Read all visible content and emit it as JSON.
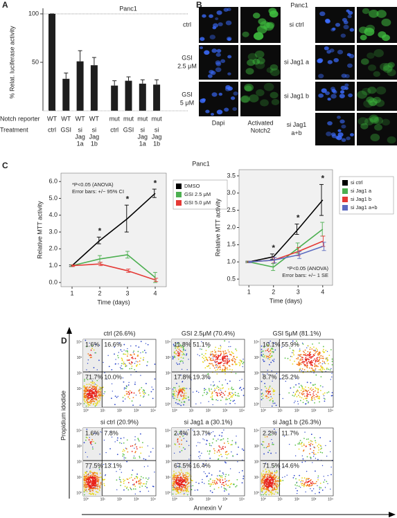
{
  "chart_data": [
    {
      "type": "bar",
      "panel_label": "A",
      "title": "Panc1",
      "ylabel": "% Relat. luciferase activity",
      "row_labels": [
        "Notch reporter",
        "Treatment"
      ],
      "reporter": [
        "WT",
        "WT",
        "WT",
        "WT",
        "mut",
        "mut",
        "mut",
        "mut"
      ],
      "categories": [
        [
          "ctrl"
        ],
        [
          "GSI"
        ],
        [
          "si",
          "Jag",
          "1a"
        ],
        [
          "si",
          "Jag",
          "1b"
        ],
        [
          "ctrl"
        ],
        [
          "GSI"
        ],
        [
          "si",
          "Jag",
          "1a"
        ],
        [
          "si",
          "Jag",
          "1b"
        ]
      ],
      "values": [
        100,
        33,
        51,
        47,
        26,
        31,
        28,
        27
      ],
      "errors": [
        0,
        6,
        11,
        8,
        5,
        4,
        4,
        5
      ],
      "color": "#1e1e1e",
      "ylim": [
        0,
        100
      ],
      "yticks": [
        50,
        100
      ]
    },
    {
      "type": "line",
      "panel_label": "C",
      "title": "Panc1",
      "xlabel": "Time (days)",
      "ylabel": "Relative MTT activity",
      "annotations": [
        "*P<0.05 (ANOVA)",
        "Error bars: +/− 95% CI"
      ],
      "significance": {
        "label": "*",
        "x": [
          2,
          3,
          4
        ]
      },
      "x": [
        1,
        2,
        3,
        4
      ],
      "xlim": [
        0.6,
        4.4
      ],
      "xticks": [
        1,
        2,
        3,
        4
      ],
      "ylim": [
        -0.25,
        6.5
      ],
      "yticks": [
        {
          "value": 0,
          "label": "0.0"
        },
        {
          "value": 1,
          "label": "1.0"
        },
        {
          "value": 2,
          "label": "2.0"
        },
        {
          "value": 3,
          "label": "3.0"
        },
        {
          "value": 4,
          "label": "4.0"
        },
        {
          "value": 5,
          "label": "5.0"
        },
        {
          "value": 6,
          "label": "6.0"
        }
      ],
      "legend": "outside-right",
      "series": [
        {
          "name": "DMSO",
          "color": "#000000",
          "values": [
            1,
            2.5,
            3.8,
            5.3
          ],
          "errors": [
            0.05,
            0.2,
            0.8,
            0.25
          ]
        },
        {
          "name": "GSI 2.5 μM",
          "color": "#4caf50",
          "values": [
            1,
            1.4,
            1.65,
            0.3
          ],
          "errors": [
            0.05,
            0.2,
            0.2,
            0.3
          ]
        },
        {
          "name": "GSI 5.0 μM",
          "color": "#e53935",
          "values": [
            1,
            1.1,
            0.7,
            0.15
          ],
          "errors": [
            0.05,
            0.1,
            0.1,
            0.1
          ]
        }
      ]
    },
    {
      "type": "line",
      "xlabel": "Time (days)",
      "ylabel": "Relative MTT activity",
      "annotations": [
        "*P<0.05 (ANOVA)",
        "Error bars: +/− 1 SE"
      ],
      "significance": {
        "label": "*",
        "x": [
          2,
          3,
          4
        ]
      },
      "x": [
        1,
        2,
        3,
        4
      ],
      "xlim": [
        0.6,
        4.4
      ],
      "xticks": [
        1,
        2,
        3,
        4
      ],
      "ylim": [
        0.32,
        3.68
      ],
      "yticks": [
        0.5,
        {
          "value": 1,
          "label": "1.0"
        },
        1.5,
        {
          "value": 2,
          "label": "2.0"
        },
        2.5,
        {
          "value": 3,
          "label": "3.0"
        },
        3.5
      ],
      "legend": "outside-right",
      "series": [
        {
          "name": "si ctrl",
          "color": "#000000",
          "values": [
            1,
            1.15,
            1.95,
            2.8
          ],
          "errors": [
            0.02,
            0.08,
            0.15,
            0.45
          ]
        },
        {
          "name": "si Jag1 a",
          "color": "#4caf50",
          "values": [
            1,
            0.85,
            1.4,
            1.95
          ],
          "errors": [
            0.02,
            0.1,
            0.15,
            0.2
          ]
        },
        {
          "name": "si Jag1 b",
          "color": "#e53935",
          "values": [
            1,
            1.05,
            1.3,
            1.6
          ],
          "errors": [
            0.02,
            0.08,
            0.12,
            0.15
          ]
        },
        {
          "name": "si Jag1 a+b",
          "color": "#5c6bc0",
          "values": [
            1,
            1.05,
            1.2,
            1.45
          ],
          "errors": [
            0.02,
            0.08,
            0.1,
            0.12
          ]
        }
      ]
    }
  ],
  "microscopy": {
    "label": "B",
    "title": "Panc1",
    "left_rows": [
      [
        "ctrl"
      ],
      [
        "GSI",
        "2.5 μM"
      ],
      [
        "GSI",
        "5 μM"
      ]
    ],
    "columns": [
      [
        "Dapi"
      ],
      [
        "Activated",
        "Notch2"
      ]
    ],
    "right_rows": [
      [
        "si ctrl"
      ],
      [
        "si Jag1 a"
      ],
      [
        "si Jag1 b"
      ],
      [
        "si Jag1",
        "a+b"
      ]
    ]
  },
  "flow": {
    "label": "D",
    "xlabel": "Annexin V",
    "ylabel": "Propidium idodide",
    "axis_ticks": [
      "10⁰",
      "10¹",
      "10²",
      "10³",
      "10⁴"
    ],
    "plots": [
      {
        "title": "ctrl (26.6%)",
        "quadrants": [
          "1.6%",
          "16.6%",
          "71.7%",
          "10.0%"
        ]
      },
      {
        "title": "GSI 2.5μM (70.4%)",
        "quadrants": [
          "11.8%",
          "51.1%",
          "17.8%",
          "19.3%"
        ]
      },
      {
        "title": "GSI 5μM (81.1%)",
        "quadrants": [
          "10.1%",
          "55.9%",
          "8.7%",
          "25.2%"
        ]
      },
      {
        "title": "si ctrl (20.9%)",
        "quadrants": [
          "1.6%",
          "7.8%",
          "77.5%",
          "13.1%"
        ]
      },
      {
        "title": "si Jag1 a (30.1%)",
        "quadrants": [
          "2.4%",
          "13.7%",
          "67.5%",
          "16.4%"
        ]
      },
      {
        "title": "si Jag1 b (26.3%)",
        "quadrants": [
          "2.2%",
          "11.7%",
          "71.5%",
          "14.6%"
        ]
      }
    ]
  }
}
